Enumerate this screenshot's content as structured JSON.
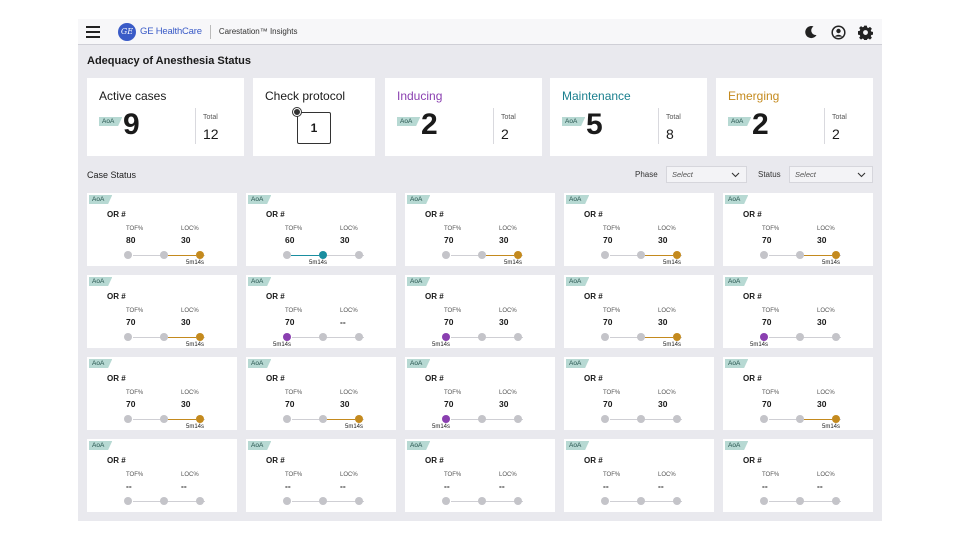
{
  "header": {
    "brand": "GE HealthCare",
    "logo_text": "GE",
    "app_name": "Carestation™ Insights",
    "icons": [
      "menu-icon",
      "moon-icon",
      "user-icon",
      "gear-icon"
    ]
  },
  "page_title": "Adequacy of Anesthesia Status",
  "summary": {
    "active": {
      "label": "Active  cases",
      "tag": "AoA",
      "value": "9",
      "total_label": "Total",
      "total": "12"
    },
    "protocol": {
      "label": "Check protocol",
      "value": "1"
    },
    "inducing": {
      "label": "Inducing",
      "tag": "AoA",
      "value": "2",
      "total_label": "Total",
      "total": "2"
    },
    "maintenance": {
      "label": "Maintenance",
      "tag": "AoA",
      "value": "5",
      "total_label": "Total",
      "total": "8"
    },
    "emerging": {
      "label": "Emerging",
      "tag": "AoA",
      "value": "2",
      "total_label": "Total",
      "total": "2"
    }
  },
  "case_status": {
    "title": "Case Status",
    "phase_label": "Phase",
    "phase_placeholder": "Select",
    "status_label": "Status",
    "status_placeholder": "Select"
  },
  "colors": {
    "inducing": "#8a3fb0",
    "maintenance": "#1a8ea0",
    "emerging": "#c48a1e",
    "inactive": "#c4c4c9"
  },
  "cards": [
    {
      "tag": "AoA",
      "or": "OR #",
      "tof_label": "TOF%",
      "loc_label": "LOC%",
      "tof": "80",
      "loc": "30",
      "phase": "emerging",
      "time": "5m14s"
    },
    {
      "tag": "AoA",
      "or": "OR #",
      "tof_label": "TOF%",
      "loc_label": "LOC%",
      "tof": "60",
      "loc": "30",
      "phase": "maintenance",
      "time": "5m14s"
    },
    {
      "tag": "AoA",
      "or": "OR #",
      "tof_label": "TOF%",
      "loc_label": "LOC%",
      "tof": "70",
      "loc": "30",
      "phase": "emerging",
      "time": "5m14s"
    },
    {
      "tag": "AoA",
      "or": "OR #",
      "tof_label": "TOF%",
      "loc_label": "LOC%",
      "tof": "70",
      "loc": "30",
      "phase": "emerging",
      "time": "5m14s"
    },
    {
      "tag": "AoA",
      "or": "OR #",
      "tof_label": "TOF%",
      "loc_label": "LOC%",
      "tof": "70",
      "loc": "30",
      "phase": "emerging",
      "time": "5m14s"
    },
    {
      "tag": "AoA",
      "or": "OR #",
      "tof_label": "TOF%",
      "loc_label": "LOC%",
      "tof": "70",
      "loc": "30",
      "phase": "emerging",
      "time": "5m14s"
    },
    {
      "tag": "AoA",
      "or": "OR #",
      "tof_label": "TOF%",
      "loc_label": "LOC%",
      "tof": "70",
      "loc": "--",
      "phase": "inducing",
      "time": "5m14s"
    },
    {
      "tag": "AoA",
      "or": "OR #",
      "tof_label": "TOF%",
      "loc_label": "LOC%",
      "tof": "70",
      "loc": "30",
      "phase": "inducing",
      "time": "5m14s"
    },
    {
      "tag": "AoA",
      "or": "OR #",
      "tof_label": "TOF%",
      "loc_label": "LOC%",
      "tof": "70",
      "loc": "30",
      "phase": "emerging",
      "time": "5m14s"
    },
    {
      "tag": "AoA",
      "or": "OR #",
      "tof_label": "TOF%",
      "loc_label": "LOC%",
      "tof": "70",
      "loc": "30",
      "phase": "inducing",
      "time": "5m14s"
    },
    {
      "tag": "AoA",
      "or": "OR #",
      "tof_label": "TOF%",
      "loc_label": "LOC%",
      "tof": "70",
      "loc": "30",
      "phase": "emerging",
      "time": "5m14s"
    },
    {
      "tag": "AoA",
      "or": "OR #",
      "tof_label": "TOF%",
      "loc_label": "LOC%",
      "tof": "70",
      "loc": "30",
      "phase": "emerging",
      "time": "5m14s"
    },
    {
      "tag": "AoA",
      "or": "OR #",
      "tof_label": "TOF%",
      "loc_label": "LOC%",
      "tof": "70",
      "loc": "30",
      "phase": "inducing",
      "time": "5m14s"
    },
    {
      "tag": "AoA",
      "or": "OR #",
      "tof_label": "TOF%",
      "loc_label": "LOC%",
      "tof": "70",
      "loc": "30",
      "phase": "none",
      "time": ""
    },
    {
      "tag": "AoA",
      "or": "OR #",
      "tof_label": "TOF%",
      "loc_label": "LOC%",
      "tof": "70",
      "loc": "30",
      "phase": "emerging",
      "time": "5m14s"
    },
    {
      "tag": "AoA",
      "or": "OR #",
      "tof_label": "TOF%",
      "loc_label": "LOC%",
      "tof": "--",
      "loc": "--",
      "phase": "none",
      "time": ""
    },
    {
      "tag": "AoA",
      "or": "OR #",
      "tof_label": "TOF%",
      "loc_label": "LOC%",
      "tof": "--",
      "loc": "--",
      "phase": "none",
      "time": ""
    },
    {
      "tag": "AoA",
      "or": "OR #",
      "tof_label": "TOF%",
      "loc_label": "LOC%",
      "tof": "--",
      "loc": "--",
      "phase": "none",
      "time": ""
    },
    {
      "tag": "AoA",
      "or": "OR #",
      "tof_label": "TOF%",
      "loc_label": "LOC%",
      "tof": "--",
      "loc": "--",
      "phase": "none",
      "time": ""
    },
    {
      "tag": "AoA",
      "or": "OR #",
      "tof_label": "TOF%",
      "loc_label": "LOC%",
      "tof": "--",
      "loc": "--",
      "phase": "none",
      "time": ""
    }
  ]
}
